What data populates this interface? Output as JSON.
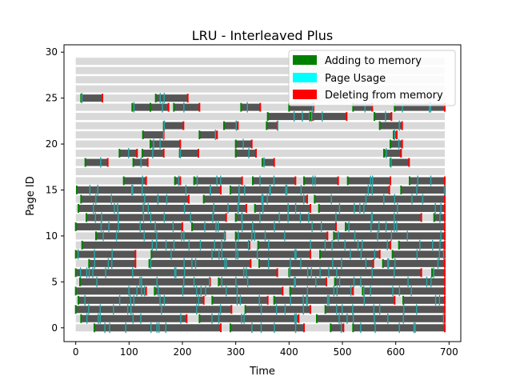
{
  "chart_data": {
    "type": "timeline",
    "title": "LRU - Interleaved Plus",
    "xlabel": "Time",
    "ylabel": "Page ID",
    "xlim": [
      -22,
      722
    ],
    "ylim": [
      -1.5,
      30.8
    ],
    "xticks": [
      0,
      100,
      200,
      300,
      400,
      500,
      600,
      700
    ],
    "yticks": [
      0,
      5,
      10,
      15,
      20,
      25,
      30
    ],
    "time_max": 692,
    "page_rows": 30,
    "legend": {
      "placement": "top-right",
      "entries": [
        {
          "label": "Adding to memory",
          "color": "#008000"
        },
        {
          "label": "Page Usage",
          "color": "#00ffff"
        },
        {
          "label": "Deleting from memory",
          "color": "#ff0000"
        }
      ]
    },
    "colors": {
      "resident": "#555555",
      "empty_row": "#d9d9d9",
      "usage_tick": "#2aa6a6",
      "add": "#008000",
      "delete": "#ff0000"
    },
    "resident_intervals": {
      "0": [
        [
          35,
          272
        ],
        [
          290,
          428
        ],
        [
          478,
          502
        ],
        [
          520,
          692
        ]
      ],
      "1": [
        [
          10,
          208
        ],
        [
          232,
          418
        ],
        [
          452,
          692
        ]
      ],
      "2": [
        [
          0,
          292
        ],
        [
          318,
          440
        ],
        [
          468,
          692
        ]
      ],
      "3": [
        [
          5,
          240
        ],
        [
          256,
          360
        ],
        [
          372,
          598
        ],
        [
          614,
          692
        ]
      ],
      "4": [
        [
          0,
          132
        ],
        [
          148,
          388
        ],
        [
          402,
          520
        ],
        [
          538,
          692
        ]
      ],
      "5": [
        [
          8,
          252
        ],
        [
          268,
          470
        ],
        [
          486,
          692
        ]
      ],
      "6": [
        [
          0,
          378
        ],
        [
          400,
          648
        ],
        [
          668,
          692
        ]
      ],
      "7": [
        [
          25,
          112
        ],
        [
          138,
          328
        ],
        [
          344,
          558
        ],
        [
          576,
          692
        ]
      ],
      "8": [
        [
          0,
          112
        ],
        [
          142,
          440
        ],
        [
          458,
          570
        ],
        [
          594,
          692
        ]
      ],
      "9": [
        [
          12,
          326
        ],
        [
          342,
          590
        ],
        [
          606,
          692
        ]
      ],
      "10": [
        [
          38,
          280
        ],
        [
          300,
          472
        ],
        [
          484,
          692
        ]
      ],
      "11": [
        [
          0,
          200
        ],
        [
          218,
          488
        ],
        [
          506,
          692
        ]
      ],
      "12": [
        [
          20,
          282
        ],
        [
          300,
          648
        ],
        [
          672,
          692
        ]
      ],
      "13": [
        [
          5,
          320
        ],
        [
          336,
          440
        ],
        [
          456,
          692
        ]
      ],
      "14": [
        [
          10,
          212
        ],
        [
          240,
          434
        ],
        [
          448,
          692
        ]
      ],
      "15": [
        [
          2,
          272
        ],
        [
          290,
          588
        ],
        [
          610,
          692
        ]
      ],
      "16": [
        [
          90,
          132
        ],
        [
          186,
          196
        ],
        [
          222,
          312
        ],
        [
          332,
          412
        ],
        [
          428,
          492
        ],
        [
          510,
          590
        ],
        [
          626,
          692
        ]
      ],
      "18": [
        [
          18,
          60
        ],
        [
          108,
          135
        ],
        [
          350,
          372
        ],
        [
          590,
          625
        ]
      ],
      "19": [
        [
          82,
          115
        ],
        [
          125,
          165
        ],
        [
          195,
          230
        ],
        [
          300,
          338
        ],
        [
          578,
          610
        ]
      ],
      "20": [
        [
          140,
          196
        ],
        [
          300,
          330
        ],
        [
          590,
          612
        ]
      ],
      "21": [
        [
          126,
          165
        ],
        [
          232,
          265
        ],
        [
          596,
          602
        ]
      ],
      "22": [
        [
          165,
          202
        ],
        [
          278,
          304
        ],
        [
          358,
          378
        ],
        [
          570,
          612
        ]
      ],
      "23": [
        [
          360,
          445
        ],
        [
          440,
          508
        ],
        [
          560,
          592
        ]
      ],
      "24": [
        [
          106,
          140
        ],
        [
          140,
          174
        ],
        [
          184,
          232
        ],
        [
          310,
          346
        ],
        [
          400,
          446
        ],
        [
          520,
          556
        ],
        [
          598,
          692
        ]
      ],
      "25": [
        [
          10,
          50
        ],
        [
          150,
          210
        ]
      ],
      "26": [
        [],
        []
      ]
    }
  }
}
